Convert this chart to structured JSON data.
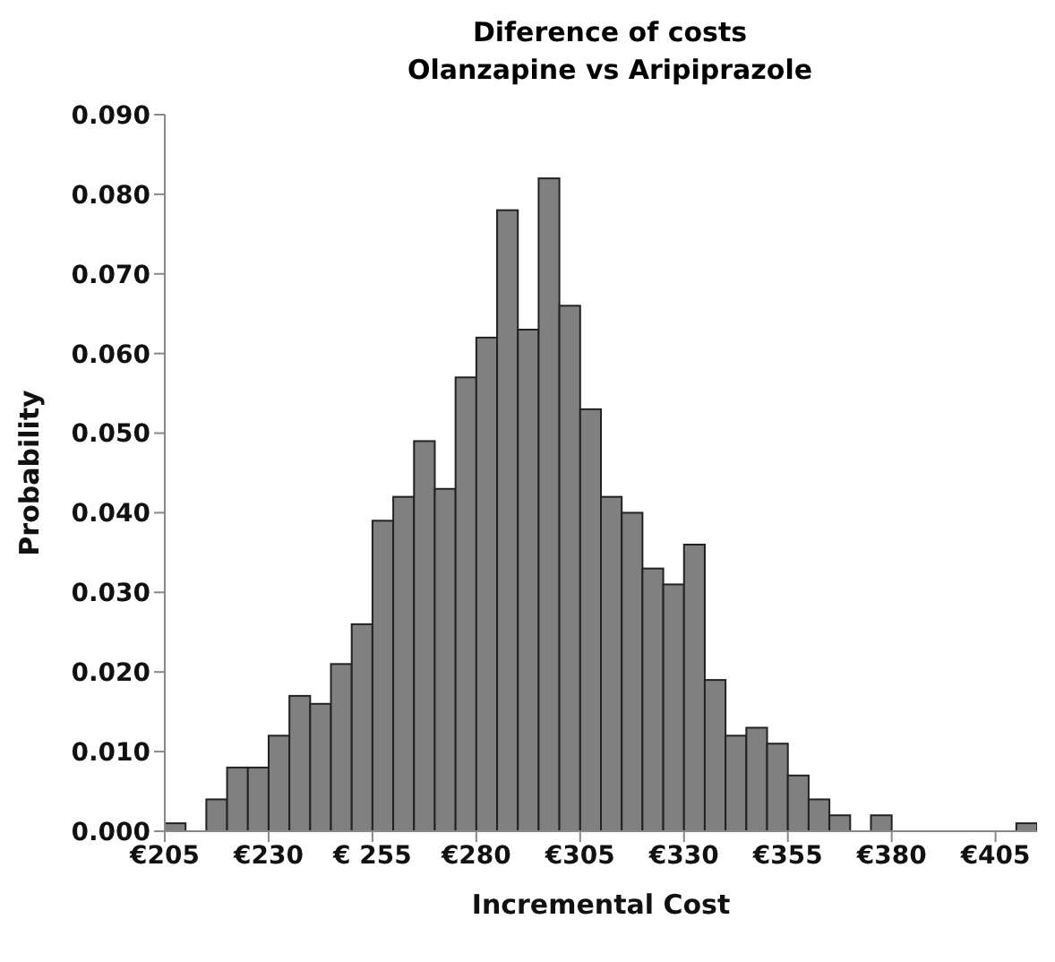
{
  "chart_data": {
    "type": "histogram",
    "title": "Diference of costs",
    "subtitle": "Olanzapine vs Aripiprazole",
    "xlabel": "Incremental Cost",
    "ylabel": "Probability",
    "bins": [
      205,
      210,
      215,
      220,
      225,
      230,
      235,
      240,
      245,
      250,
      255,
      260,
      265,
      270,
      275,
      280,
      285,
      290,
      295,
      300,
      305,
      310,
      315,
      320,
      325,
      330,
      335,
      340,
      345,
      350,
      355,
      360,
      365,
      370,
      375,
      380,
      385,
      390,
      395,
      400,
      405,
      410,
      415
    ],
    "values": [
      0.001,
      0,
      0.004,
      0.008,
      0.008,
      0.012,
      0.017,
      0.016,
      0.021,
      0.026,
      0.039,
      0.042,
      0.049,
      0.043,
      0.057,
      0.062,
      0.078,
      0.063,
      0.082,
      0.066,
      0.053,
      0.042,
      0.04,
      0.033,
      0.031,
      0.036,
      0.019,
      0.012,
      0.013,
      0.011,
      0.007,
      0.004,
      0.002,
      0,
      0.002,
      0,
      0,
      0,
      0,
      0,
      0,
      0.001
    ],
    "color": "#808080",
    "xlim": [
      205,
      415
    ],
    "xticks": [
      {
        "value": 205,
        "label": "€205"
      },
      {
        "value": 230,
        "label": "€230"
      },
      {
        "value": 255,
        "label": "€ 255"
      },
      {
        "value": 280,
        "label": "€280"
      },
      {
        "value": 305,
        "label": "€305"
      },
      {
        "value": 330,
        "label": "€330"
      },
      {
        "value": 355,
        "label": "€355"
      },
      {
        "value": 380,
        "label": "€380"
      },
      {
        "value": 405,
        "label": "€405"
      }
    ],
    "ylim": [
      0,
      0.09
    ],
    "yticks": [
      {
        "value": 0,
        "label": "0.000"
      },
      {
        "value": 0.01,
        "label": "0.010"
      },
      {
        "value": 0.02,
        "label": "0.020"
      },
      {
        "value": 0.03,
        "label": "0.030"
      },
      {
        "value": 0.04,
        "label": "0.040"
      },
      {
        "value": 0.05,
        "label": "0.050"
      },
      {
        "value": 0.06,
        "label": "0.060"
      },
      {
        "value": 0.07,
        "label": "0.070"
      },
      {
        "value": 0.08,
        "label": "0.080"
      },
      {
        "value": 0.09,
        "label": "0.090"
      }
    ],
    "grid": false,
    "legend": false
  }
}
